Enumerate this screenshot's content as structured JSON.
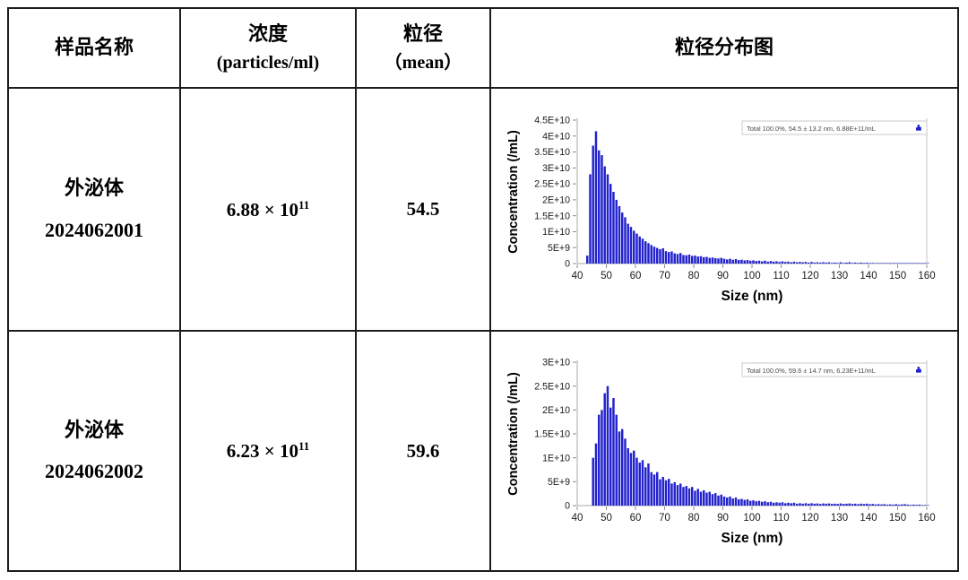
{
  "table": {
    "headers": {
      "sample_name": "样品名称",
      "concentration_line1": "浓度",
      "concentration_line2": "(particles/ml)",
      "size_line1": "粒径",
      "size_line2": "（mean）",
      "distribution": "粒径分布图"
    },
    "rows": [
      {
        "sample_line1": "外泌体",
        "sample_line2": "2024062001",
        "concentration_base": "6.88 × 10",
        "concentration_exp": "11",
        "mean_size": "54.5"
      },
      {
        "sample_line1": "外泌体",
        "sample_line2": "2024062002",
        "concentration_base": "6.23 × 10",
        "concentration_exp": "11",
        "mean_size": "59.6"
      }
    ]
  },
  "chart_data": [
    {
      "type": "bar",
      "title": "",
      "xlabel": "Size (nm)",
      "ylabel": "Concentration (/mL)",
      "legend": "Total  100.0%,  54.5 ± 13.2 nm,  6.88E+11/mL",
      "legend_icon": "histogram-icon",
      "bar_color": "#2121CE",
      "grid": false,
      "legend_position": "top-right",
      "xlim": [
        40,
        160
      ],
      "bin_width": 1,
      "x_ticks": [
        40,
        50,
        60,
        70,
        80,
        90,
        100,
        110,
        120,
        130,
        140,
        150,
        160
      ],
      "y_unit": "1e9 particles per mL",
      "ylim_1e9": [
        0,
        45
      ],
      "y_ticks": [
        {
          "v": 0,
          "label": "0"
        },
        {
          "v": 5,
          "label": "5E+9"
        },
        {
          "v": 10,
          "label": "1E+10"
        },
        {
          "v": 15,
          "label": "1.5E+10"
        },
        {
          "v": 20,
          "label": "2E+10"
        },
        {
          "v": 25,
          "label": "2.5E+10"
        },
        {
          "v": 30,
          "label": "3E+10"
        },
        {
          "v": 35,
          "label": "3.5E+10"
        },
        {
          "v": 40,
          "label": "4E+10"
        },
        {
          "v": 45,
          "label": "4.5E+10"
        }
      ],
      "values_1e9": [
        0,
        0,
        0,
        2.5,
        28,
        37,
        41.5,
        35.5,
        34,
        30.5,
        28,
        25,
        22.5,
        20,
        18,
        16,
        14.5,
        12.5,
        11.5,
        10.3,
        9.4,
        8.5,
        7.8,
        7,
        6.4,
        5.8,
        5.3,
        4.9,
        4.5,
        4.8,
        3.9,
        3.6,
        3.8,
        3.2,
        3,
        3.3,
        2.7,
        2.6,
        2.8,
        2.4,
        2.5,
        2.2,
        2.3,
        2,
        2.1,
        1.8,
        1.9,
        1.7,
        1.6,
        1.8,
        1.5,
        1.3,
        1.5,
        1.2,
        1.4,
        1.1,
        1.2,
        1,
        1.1,
        0.9,
        1,
        0.8,
        0.9,
        0.7,
        0.9,
        0.6,
        0.8,
        0.6,
        0.7,
        0.5,
        0.7,
        0.5,
        0.6,
        0.4,
        0.6,
        0.4,
        0.5,
        0.4,
        0.5,
        0.3,
        0.5,
        0.3,
        0.4,
        0.3,
        0.4,
        0.3,
        0.4,
        0.2,
        0.3,
        0.2,
        0.4,
        0.2,
        0.3,
        0.4,
        0.2,
        0.3,
        0.2,
        0.3,
        0.2,
        0.25,
        0.15,
        0.2,
        0.1,
        0.15,
        0.1,
        0.15,
        0.1,
        0.15,
        0.1,
        0.15,
        0.1,
        0.15,
        0.1,
        0.15,
        0.05,
        0.1,
        0.05,
        0.1,
        0.05,
        0.05,
        0.05
      ]
    },
    {
      "type": "bar",
      "title": "",
      "xlabel": "Size (nm)",
      "ylabel": "Concentration (/mL)",
      "legend": "Total  100.0%,  59.6 ± 14.7 nm,  6.23E+11/mL",
      "legend_icon": "histogram-icon",
      "bar_color": "#2121CE",
      "grid": false,
      "legend_position": "top-right",
      "xlim": [
        40,
        160
      ],
      "bin_width": 1,
      "x_ticks": [
        40,
        50,
        60,
        70,
        80,
        90,
        100,
        110,
        120,
        130,
        140,
        150,
        160
      ],
      "y_unit": "1e9 particles per mL",
      "ylim_1e9": [
        0,
        30
      ],
      "y_ticks": [
        {
          "v": 0,
          "label": "0"
        },
        {
          "v": 5,
          "label": "5E+9"
        },
        {
          "v": 10,
          "label": "1E+10"
        },
        {
          "v": 15,
          "label": "1.5E+10"
        },
        {
          "v": 20,
          "label": "2E+10"
        },
        {
          "v": 25,
          "label": "2.5E+10"
        },
        {
          "v": 30,
          "label": "3E+10"
        }
      ],
      "values_1e9": [
        0,
        0,
        0,
        0,
        0,
        10,
        13,
        19,
        20,
        23.5,
        25,
        20.5,
        22.5,
        19,
        15.5,
        16,
        14,
        12,
        11,
        11.5,
        10,
        9,
        9.5,
        8,
        8.8,
        7,
        6.5,
        7,
        5.5,
        6,
        5.3,
        5.6,
        4.6,
        4.9,
        4.3,
        4.6,
        3.9,
        4.1,
        3.6,
        3.9,
        3.1,
        3.5,
        2.9,
        3.2,
        2.7,
        2.9,
        2.4,
        2.6,
        2.1,
        2.3,
        1.9,
        1.7,
        1.9,
        1.5,
        1.7,
        1.3,
        1.4,
        1.2,
        1.3,
        1,
        1.1,
        0.9,
        1,
        0.8,
        0.9,
        0.7,
        0.8,
        0.6,
        0.7,
        0.6,
        0.7,
        0.5,
        0.6,
        0.5,
        0.6,
        0.4,
        0.5,
        0.4,
        0.5,
        0.4,
        0.5,
        0.4,
        0.45,
        0.35,
        0.45,
        0.4,
        0.45,
        0.35,
        0.4,
        0.35,
        0.45,
        0.35,
        0.4,
        0.45,
        0.35,
        0.4,
        0.3,
        0.4,
        0.35,
        0.4,
        0.3,
        0.35,
        0.25,
        0.3,
        0.25,
        0.3,
        0.2,
        0.25,
        0.2,
        0.3,
        0.2,
        0.25,
        0.3,
        0.2,
        0.15,
        0.2,
        0.15,
        0.2,
        0.1,
        0.1,
        0.1
      ]
    }
  ]
}
